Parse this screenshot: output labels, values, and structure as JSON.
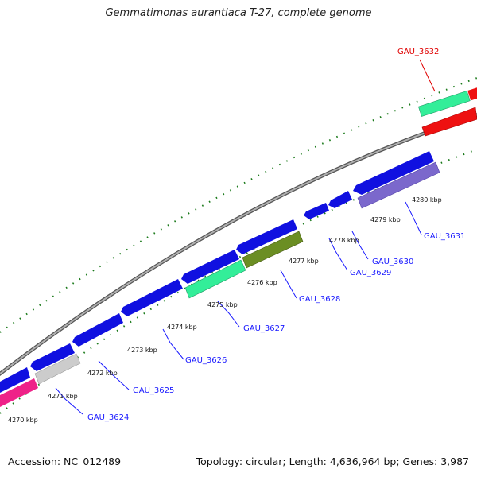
{
  "title": "Gemmatimonas aurantiaca T-27, complete genome",
  "footer": {
    "accession": "Accession: NC_012489",
    "summary": "Topology: circular; Length: 4,636,964 bp; Genes: 3,987"
  },
  "colors": {
    "backbone": "#888888",
    "tick": "#1a7a1a",
    "label": "#1a1aff",
    "label_highlight": "#e00000",
    "cds_blue": "#1010e0",
    "cds_teal": "#33ee99",
    "cds_olive": "#6b8e23",
    "cds_slate": "#7b68cc",
    "cds_red": "#ee1111",
    "cds_pink": "#ee2288",
    "cds_grey": "#cccccc"
  },
  "scale_labels": [
    "4270 kbp",
    "4271 kbp",
    "4272 kbp",
    "4273 kbp",
    "4274 kbp",
    "4275 kbp",
    "4276 kbp",
    "4277 kbp",
    "4278 kbp",
    "4279 kbp",
    "4280 kbp"
  ],
  "gene_labels": [
    {
      "text": "GAU_3624",
      "highlight": false
    },
    {
      "text": "GAU_3625",
      "highlight": false
    },
    {
      "text": "GAU_3626",
      "highlight": false
    },
    {
      "text": "GAU_3627",
      "highlight": false
    },
    {
      "text": "GAU_3628",
      "highlight": false
    },
    {
      "text": "GAU_3629",
      "highlight": false
    },
    {
      "text": "GAU_3630",
      "highlight": false
    },
    {
      "text": "GAU_3631",
      "highlight": false
    },
    {
      "text": "GAU_3632",
      "highlight": true
    }
  ]
}
